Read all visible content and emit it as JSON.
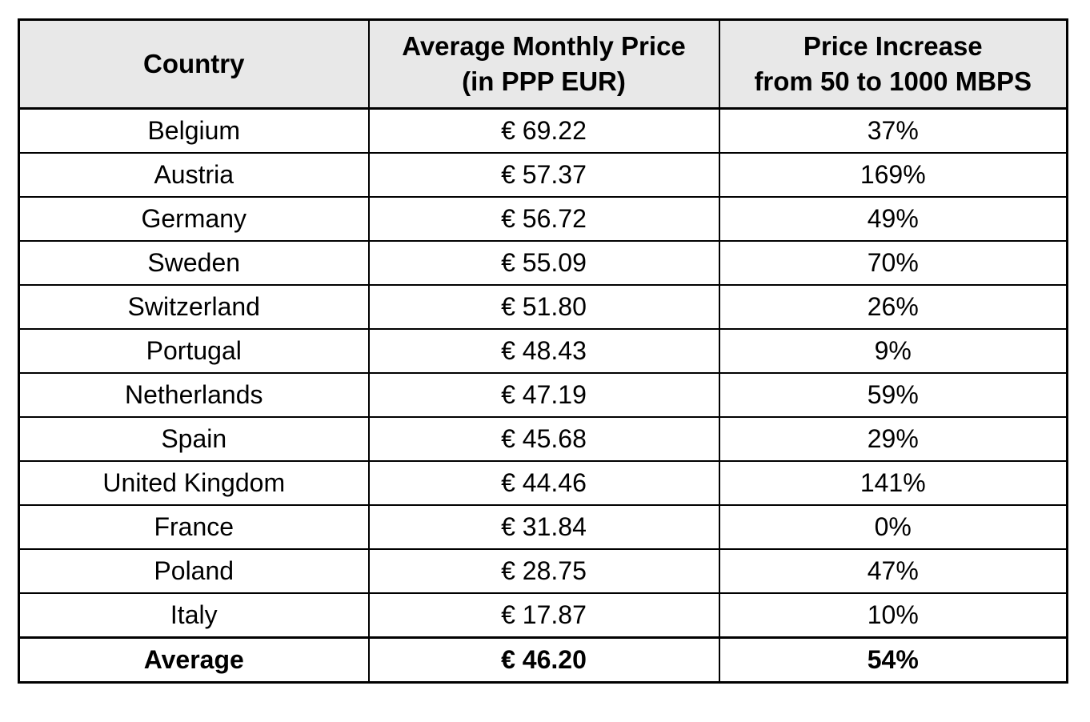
{
  "table": {
    "headers": {
      "country": "Country",
      "price_line1": "Average Monthly Price",
      "price_line2": "(in PPP EUR)",
      "increase_line1": "Price Increase",
      "increase_line2": "from 50 to 1000 MBPS"
    },
    "rows": [
      {
        "country": "Belgium",
        "price": "€ 69.22",
        "increase": "37%"
      },
      {
        "country": "Austria",
        "price": "€ 57.37",
        "increase": "169%"
      },
      {
        "country": "Germany",
        "price": "€ 56.72",
        "increase": "49%"
      },
      {
        "country": "Sweden",
        "price": "€ 55.09",
        "increase": "70%"
      },
      {
        "country": "Switzerland",
        "price": "€ 51.80",
        "increase": "26%"
      },
      {
        "country": "Portugal",
        "price": "€ 48.43",
        "increase": "9%"
      },
      {
        "country": "Netherlands",
        "price": "€ 47.19",
        "increase": "59%"
      },
      {
        "country": "Spain",
        "price": "€ 45.68",
        "increase": "29%"
      },
      {
        "country": "United Kingdom",
        "price": "€ 44.46",
        "increase": "141%"
      },
      {
        "country": "France",
        "price": "€ 31.84",
        "increase": "0%"
      },
      {
        "country": "Poland",
        "price": "€ 28.75",
        "increase": "47%"
      },
      {
        "country": "Italy",
        "price": "€ 17.87",
        "increase": "10%"
      }
    ],
    "footer": {
      "country": "Average",
      "price": "€ 46.20",
      "increase": "54%"
    }
  },
  "colors": {
    "header_bg": "#e8e8e8",
    "row_bg": "#ffffff",
    "border": "#000000",
    "text": "#000000"
  },
  "chart_data": {
    "type": "table",
    "title": "",
    "columns": [
      "Country",
      "Average Monthly Price (in PPP EUR)",
      "Price Increase from 50 to 1000 MBPS"
    ],
    "rows": [
      {
        "country": "Belgium",
        "avg_monthly_price_ppp_eur": 69.22,
        "price_increase_50_to_1000_mbps_pct": 37
      },
      {
        "country": "Austria",
        "avg_monthly_price_ppp_eur": 57.37,
        "price_increase_50_to_1000_mbps_pct": 169
      },
      {
        "country": "Germany",
        "avg_monthly_price_ppp_eur": 56.72,
        "price_increase_50_to_1000_mbps_pct": 49
      },
      {
        "country": "Sweden",
        "avg_monthly_price_ppp_eur": 55.09,
        "price_increase_50_to_1000_mbps_pct": 70
      },
      {
        "country": "Switzerland",
        "avg_monthly_price_ppp_eur": 51.8,
        "price_increase_50_to_1000_mbps_pct": 26
      },
      {
        "country": "Portugal",
        "avg_monthly_price_ppp_eur": 48.43,
        "price_increase_50_to_1000_mbps_pct": 9
      },
      {
        "country": "Netherlands",
        "avg_monthly_price_ppp_eur": 47.19,
        "price_increase_50_to_1000_mbps_pct": 59
      },
      {
        "country": "Spain",
        "avg_monthly_price_ppp_eur": 45.68,
        "price_increase_50_to_1000_mbps_pct": 29
      },
      {
        "country": "United Kingdom",
        "avg_monthly_price_ppp_eur": 44.46,
        "price_increase_50_to_1000_mbps_pct": 141
      },
      {
        "country": "France",
        "avg_monthly_price_ppp_eur": 31.84,
        "price_increase_50_to_1000_mbps_pct": 0
      },
      {
        "country": "Poland",
        "avg_monthly_price_ppp_eur": 28.75,
        "price_increase_50_to_1000_mbps_pct": 47
      },
      {
        "country": "Italy",
        "avg_monthly_price_ppp_eur": 17.87,
        "price_increase_50_to_1000_mbps_pct": 10
      }
    ],
    "summary_row": {
      "country": "Average",
      "avg_monthly_price_ppp_eur": 46.2,
      "price_increase_50_to_1000_mbps_pct": 54
    }
  }
}
